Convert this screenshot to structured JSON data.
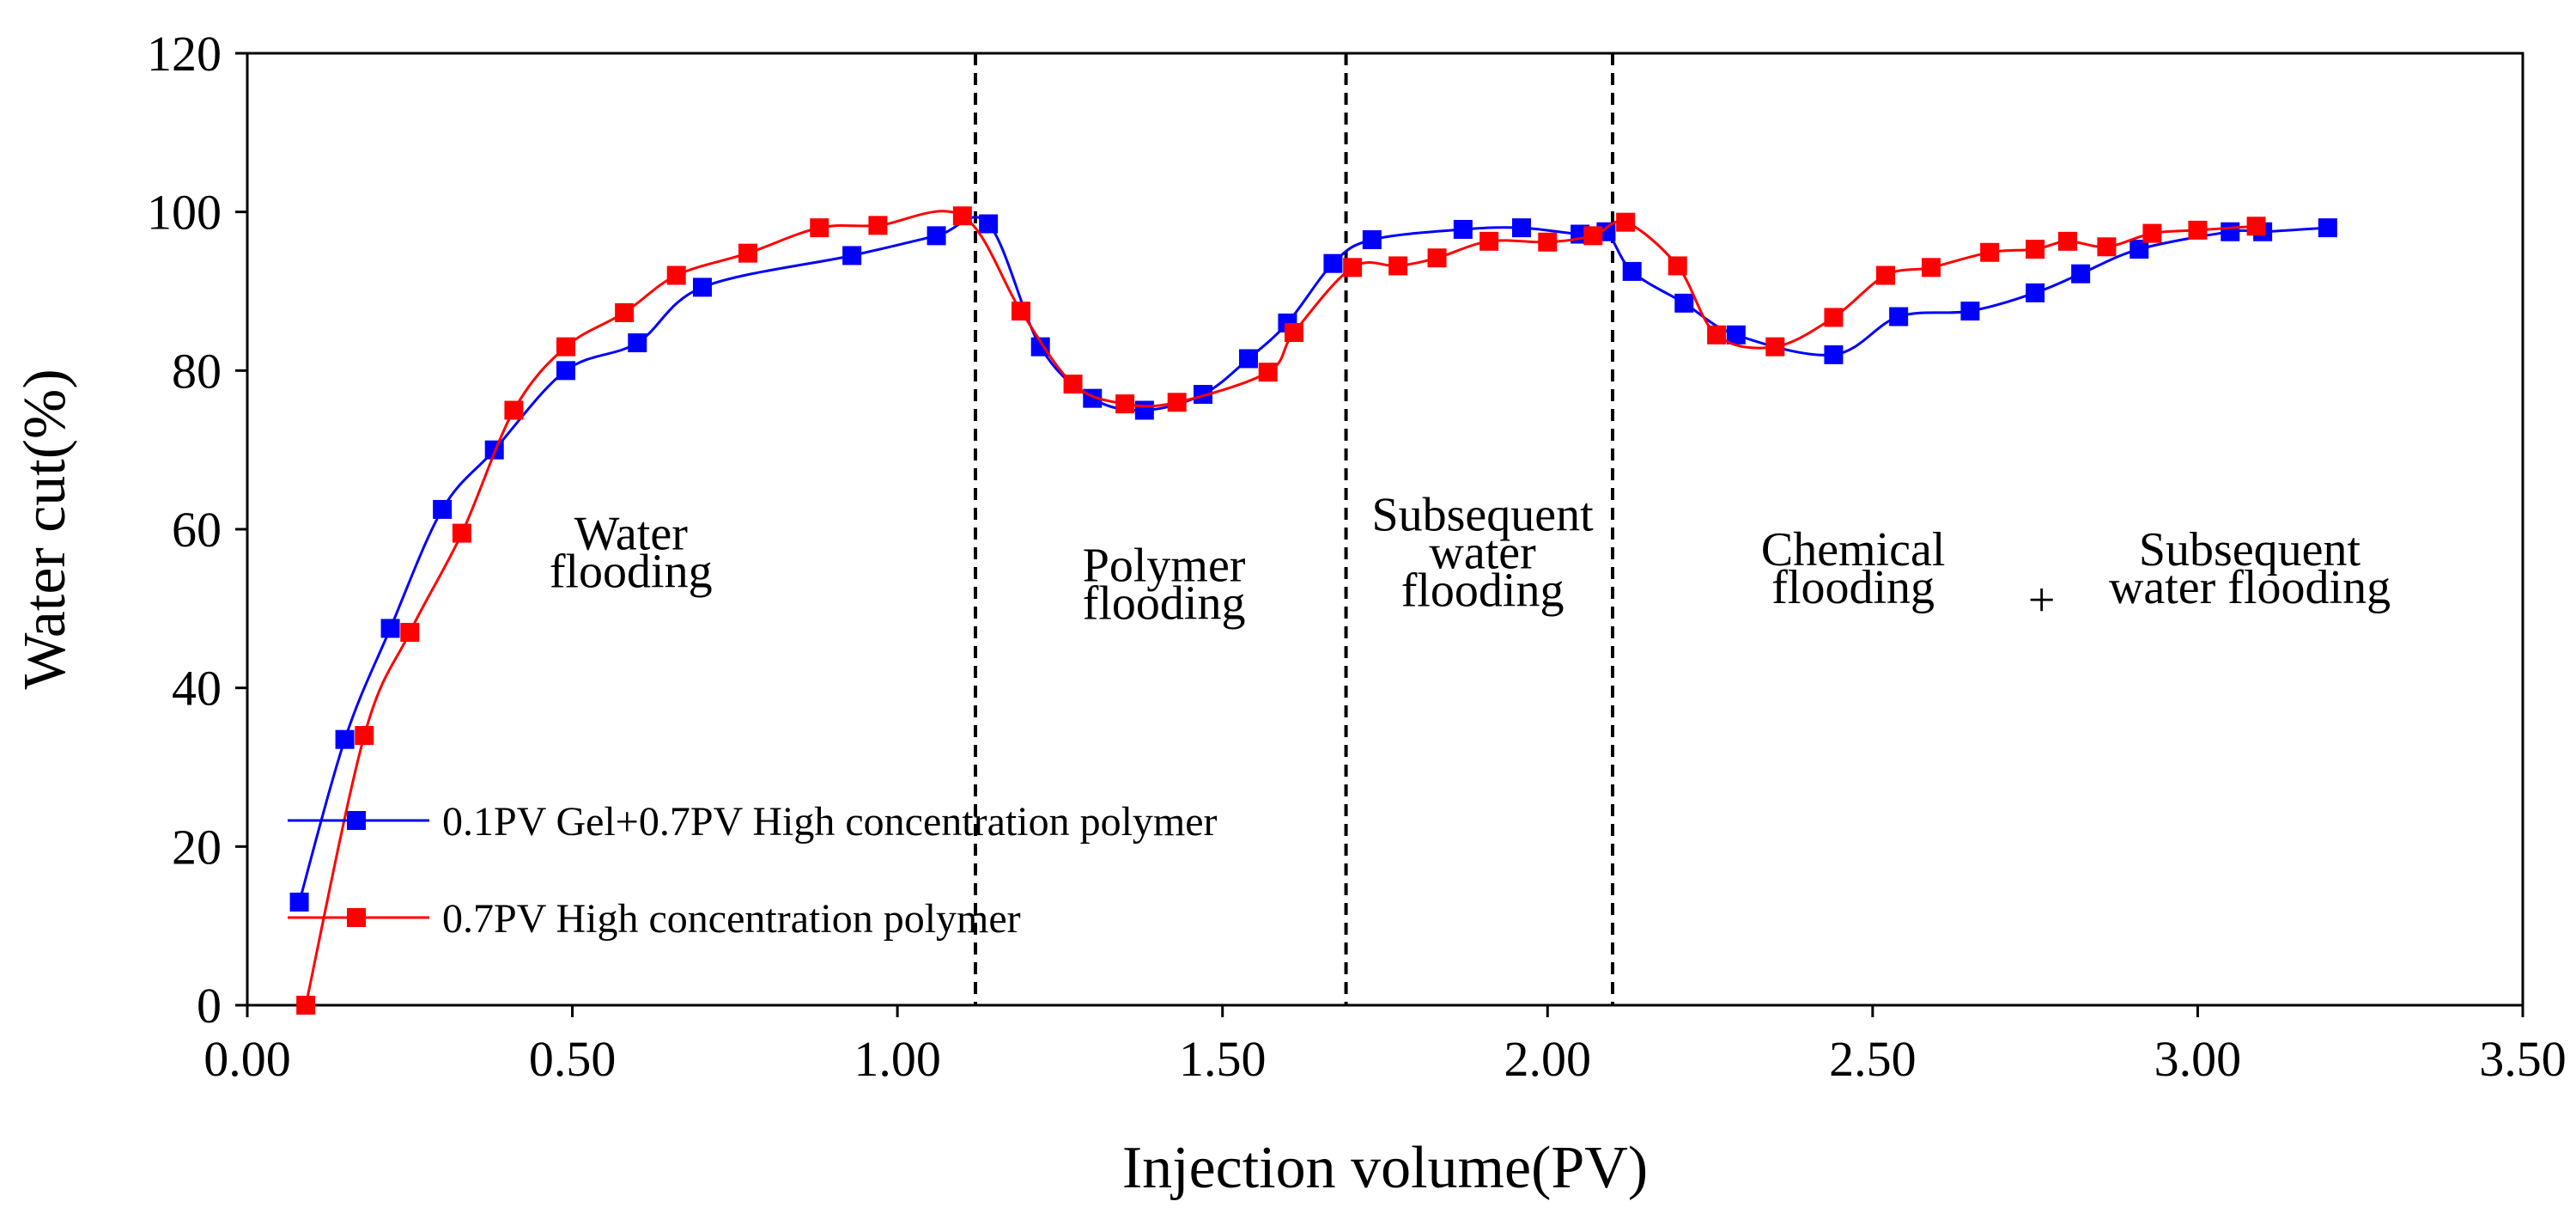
{
  "chart_data": {
    "type": "line",
    "title": "",
    "xlabel": "Injection volume(PV)",
    "ylabel": "Water cut(%)",
    "xlim": [
      0,
      3.5
    ],
    "ylim": [
      0,
      120
    ],
    "grid": false,
    "x_ticks": [
      "0.00",
      "0.50",
      "1.00",
      "1.50",
      "2.00",
      "2.50",
      "3.00",
      "3.50"
    ],
    "y_ticks": [
      "0",
      "20",
      "40",
      "60",
      "80",
      "100",
      "120"
    ],
    "legend_position": "bottom-left",
    "phase_dividers": [
      1.12,
      1.69,
      2.1
    ],
    "phase_labels": [
      {
        "lines": [
          "Water",
          "flooding"
        ],
        "x": 0.59,
        "y": 57
      },
      {
        "lines": [
          "Polymer",
          "flooding"
        ],
        "x": 1.41,
        "y": 53
      },
      {
        "lines": [
          "Subsequent",
          "water",
          "flooding"
        ],
        "x": 1.9,
        "y": 57
      },
      {
        "lines": [
          "Chemical",
          "flooding"
        ],
        "x": 2.47,
        "y": 55
      },
      {
        "lines": [
          "+"
        ],
        "x": 2.76,
        "y": 51
      },
      {
        "lines": [
          "Subsequent",
          "water flooding"
        ],
        "x": 3.08,
        "y": 55
      }
    ],
    "series": [
      {
        "name": "0.1PV Gel+0.7PV High concentration polymer",
        "color": "#0000FF",
        "x": [
          0.08,
          0.15,
          0.22,
          0.3,
          0.38,
          0.49,
          0.6,
          0.7,
          0.93,
          1.06,
          1.14,
          1.22,
          1.3,
          1.38,
          1.47,
          1.54,
          1.6,
          1.67,
          1.73,
          1.87,
          1.96,
          2.05,
          2.09,
          2.13,
          2.21,
          2.29,
          2.44,
          2.54,
          2.65,
          2.75,
          2.82,
          2.91,
          3.05,
          3.1,
          3.2
        ],
        "values": [
          13,
          33.5,
          47.5,
          62.5,
          70,
          80,
          83.5,
          90.5,
          94.5,
          97,
          98.5,
          83,
          76.5,
          75,
          77,
          81.5,
          86,
          93.5,
          96.5,
          97.8,
          98,
          97.2,
          97.5,
          92.5,
          88.5,
          84.5,
          82,
          86.8,
          87.5,
          89.8,
          92.2,
          95.3,
          97.5,
          97.5,
          98
        ]
      },
      {
        "name": "0.7PV High concentration polymer",
        "color": "#FF0000",
        "x": [
          0.09,
          0.18,
          0.25,
          0.33,
          0.41,
          0.49,
          0.58,
          0.66,
          0.77,
          0.88,
          0.97,
          1.1,
          1.19,
          1.27,
          1.35,
          1.43,
          1.57,
          1.61,
          1.7,
          1.77,
          1.83,
          1.91,
          2.0,
          2.07,
          2.12,
          2.2,
          2.26,
          2.35,
          2.44,
          2.52,
          2.59,
          2.68,
          2.75,
          2.8,
          2.86,
          2.93,
          3.0,
          3.09
        ],
        "values": [
          0,
          34,
          47,
          59.5,
          75,
          83,
          87.3,
          92,
          94.8,
          98,
          98.3,
          99.5,
          87.5,
          78.3,
          75.8,
          76,
          79.8,
          84.8,
          93,
          93.2,
          94.2,
          96.3,
          96.2,
          97,
          98.7,
          93.2,
          84.5,
          83,
          86.7,
          92,
          93,
          94.9,
          95.3,
          96.3,
          95.6,
          97.3,
          97.7,
          98.2
        ]
      }
    ]
  }
}
